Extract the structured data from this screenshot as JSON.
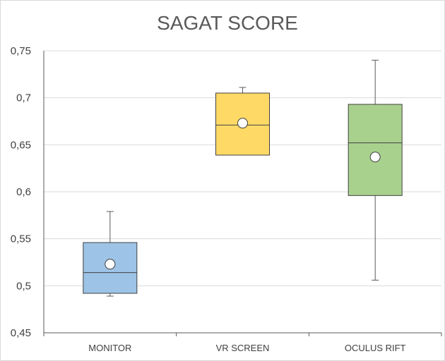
{
  "chart_data": {
    "type": "boxplot",
    "title": "SAGAT SCORE",
    "xlabel": "",
    "ylabel": "",
    "ylim": [
      0.45,
      0.75
    ],
    "y_ticks": [
      "0,45",
      "0,5",
      "0,55",
      "0,6",
      "0,65",
      "0,7",
      "0,75"
    ],
    "y_tick_values": [
      0.45,
      0.5,
      0.55,
      0.6,
      0.65,
      0.7,
      0.75
    ],
    "grid": true,
    "legend": "none",
    "categories": [
      "MONITOR",
      "VR SCREEN",
      "OCULUS RIFT"
    ],
    "boxes": [
      {
        "category": "MONITOR",
        "min": 0.489,
        "q1": 0.492,
        "median": 0.514,
        "q3": 0.546,
        "max": 0.579,
        "mean": 0.523,
        "color": "#9dc3e6"
      },
      {
        "category": "VR SCREEN",
        "min": 0.639,
        "q1": 0.639,
        "median": 0.671,
        "q3": 0.705,
        "max": 0.711,
        "mean": 0.673,
        "color": "#ffd966"
      },
      {
        "category": "OCULUS RIFT",
        "min": 0.506,
        "q1": 0.596,
        "median": 0.652,
        "q3": 0.693,
        "max": 0.74,
        "mean": 0.637,
        "color": "#a9d18e"
      }
    ]
  }
}
